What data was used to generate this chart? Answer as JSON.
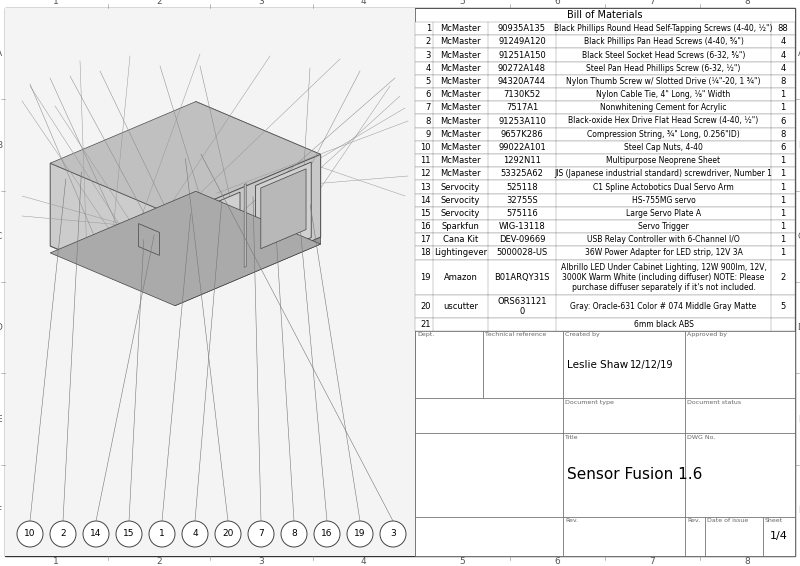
{
  "bg_color": "#ffffff",
  "line_color": "#555555",
  "title": "Sensor Fusion 1.6",
  "sheet": "1/4",
  "created_by": "Leslie Shaw",
  "date": "12/12/19",
  "col_labels_left": [
    "1",
    "2",
    "3",
    "4"
  ],
  "col_labels_right": [
    "5",
    "6",
    "7",
    "8"
  ],
  "row_labels": [
    "A",
    "B",
    "C",
    "D",
    "E",
    "F"
  ],
  "bom_title": "Bill of Materials",
  "bom_rows": [
    [
      "1",
      "McMaster",
      "90935A135",
      "Black Phillips Round Head Self-Tapping Screws (4-40, ½\")",
      "88"
    ],
    [
      "2",
      "McMaster",
      "91249A120",
      "Black Phillips Pan Head Screws (4-40, ⅝\")",
      "4"
    ],
    [
      "3",
      "McMaster",
      "91251A150",
      "Black Steel Socket Head Screws (6-32, ⅝\")",
      "4"
    ],
    [
      "4",
      "McMaster",
      "90272A148",
      "Steel Pan Head Phillips Screw (6-32, ½\")",
      "4"
    ],
    [
      "5",
      "McMaster",
      "94320A744",
      "Nylon Thumb Screw w/ Slotted Drive (¼\"-20, 1 ¾\")",
      "8"
    ],
    [
      "6",
      "McMaster",
      "7130K52",
      "Nylon Cable Tie, 4\" Long, ⅛\" Width",
      "1"
    ],
    [
      "7",
      "McMaster",
      "7517A1",
      "Nonwhitening Cement for Acrylic",
      "1"
    ],
    [
      "8",
      "McMaster",
      "91253A110",
      "Black-oxide Hex Drive Flat Head Screw (4-40, ½\")",
      "6"
    ],
    [
      "9",
      "McMaster",
      "9657K286",
      "Compression String, ¾\" Long, 0.256\"ID)",
      "8"
    ],
    [
      "10",
      "McMaster",
      "99022A101",
      "Steel Cap Nuts, 4-40",
      "6"
    ],
    [
      "11",
      "McMaster",
      "1292N11",
      "Multipurpose Neoprene Sheet",
      "1"
    ],
    [
      "12",
      "McMaster",
      "53325A62",
      "JIS (Japanese industrial standard) screwdriver, Number 1",
      "1"
    ],
    [
      "13",
      "Servocity",
      "525118",
      "C1 Spline Actobotics Dual Servo Arm",
      "1"
    ],
    [
      "14",
      "Servocity",
      "32755S",
      "HS-755MG servo",
      "1"
    ],
    [
      "15",
      "Servocity",
      "575116",
      "Large Servo Plate A",
      "1"
    ],
    [
      "16",
      "Sparkfun",
      "WIG-13118",
      "Servo Trigger",
      "1"
    ],
    [
      "17",
      "Cana Kit",
      "DEV-09669",
      "USB Relay Controller with 6-Channel I/O",
      "1"
    ],
    [
      "18",
      "Lightingever",
      "5000028-US",
      "36W Power Adapter for LED strip, 12V 3A",
      "1"
    ],
    [
      "19",
      "Amazon",
      "B01ARQY31S",
      "Albrillo LED Under Cabinet Lighting, 12W 900lm, 12V,\n3000K Warm White (including diffuser) NOTE: Please\npurchase diffuser separately if it's not included.",
      "2"
    ],
    [
      "20",
      "uscutter",
      "ORS631121\n0",
      "Gray: Oracle-631 Color # 074 Middle Gray Matte",
      "5"
    ],
    [
      "21",
      "",
      "",
      "6mm black ABS",
      ""
    ]
  ],
  "callouts": [
    "10",
    "2",
    "14",
    "15",
    "1",
    "4",
    "20",
    "7",
    "8",
    "16",
    "19",
    "3"
  ],
  "dept_label": "Dept.",
  "tech_ref_label": "Technical reference",
  "created_by_label": "Created by",
  "approved_by_label": "Approved by",
  "doc_type_label": "Document type",
  "doc_status_label": "Document status",
  "title_label": "Title",
  "dwg_no_label": "DWG No.",
  "rev_label": "Rev.",
  "date_of_issue_label": "Date of issue",
  "sheet_label": "Sheet"
}
